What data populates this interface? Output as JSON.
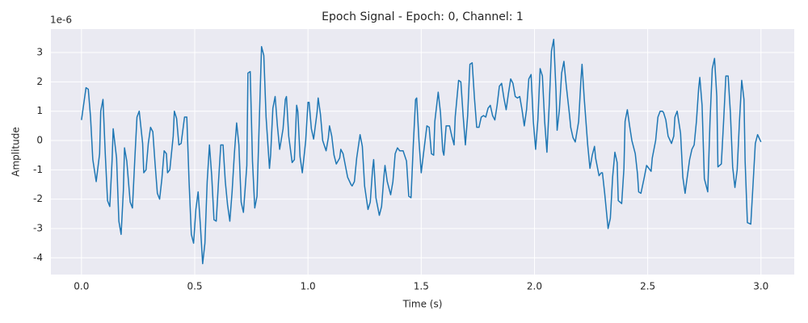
{
  "chart_data": {
    "type": "line",
    "title": "Epoch Signal - Epoch: 0, Channel: 1",
    "x_label": "Time (s)",
    "y_label": "Amplitude",
    "y_offset_label": "1e-6",
    "color": "#1f77b4",
    "grid": true,
    "xlim": [
      -0.135,
      3.147
    ],
    "ylim": [
      -4.57,
      3.8
    ],
    "xticks": [
      {
        "value": 0,
        "label": "0.0"
      },
      0.5,
      {
        "value": 1,
        "label": "1.0"
      },
      1.5,
      {
        "value": 2,
        "label": "2.0"
      },
      2.5,
      {
        "value": 3,
        "label": "3.0"
      }
    ],
    "yticks": [
      -4,
      -3,
      -2,
      -1,
      0,
      1,
      2,
      3
    ],
    "x": [
      0,
      0.02,
      0.03,
      0.04,
      0.05,
      0.065,
      0.08,
      0.085,
      0.095,
      0.105,
      0.115,
      0.125,
      0.135,
      0.14,
      0.155,
      0.165,
      0.175,
      0.185,
      0.19,
      0.2,
      0.215,
      0.225,
      0.235,
      0.245,
      0.255,
      0.27,
      0.275,
      0.285,
      0.295,
      0.305,
      0.315,
      0.325,
      0.335,
      0.345,
      0.355,
      0.365,
      0.375,
      0.38,
      0.39,
      0.405,
      0.41,
      0.42,
      0.43,
      0.44,
      0.455,
      0.465,
      0.475,
      0.485,
      0.495,
      0.505,
      0.515,
      0.525,
      0.535,
      0.545,
      0.555,
      0.565,
      0.575,
      0.585,
      0.595,
      0.605,
      0.615,
      0.625,
      0.635,
      0.645,
      0.655,
      0.665,
      0.675,
      0.685,
      0.695,
      0.705,
      0.715,
      0.73,
      0.735,
      0.745,
      0.755,
      0.765,
      0.775,
      0.785,
      0.795,
      0.805,
      0.815,
      0.83,
      0.835,
      0.845,
      0.855,
      0.865,
      0.875,
      0.89,
      0.9,
      0.905,
      0.915,
      0.93,
      0.94,
      0.95,
      0.955,
      0.965,
      0.975,
      0.99,
      1.0,
      1.005,
      1.015,
      1.025,
      1.04,
      1.045,
      1.055,
      1.065,
      1.08,
      1.09,
      1.095,
      1.105,
      1.115,
      1.125,
      1.14,
      1.145,
      1.155,
      1.165,
      1.175,
      1.19,
      1.195,
      1.205,
      1.215,
      1.23,
      1.24,
      1.25,
      1.265,
      1.275,
      1.285,
      1.29,
      1.3,
      1.315,
      1.325,
      1.335,
      1.34,
      1.35,
      1.365,
      1.375,
      1.385,
      1.395,
      1.405,
      1.41,
      1.42,
      1.435,
      1.445,
      1.455,
      1.465,
      1.475,
      1.48,
      1.49,
      1.5,
      1.51,
      1.525,
      1.535,
      1.545,
      1.555,
      1.56,
      1.575,
      1.585,
      1.595,
      1.6,
      1.61,
      1.625,
      1.635,
      1.645,
      1.65,
      1.665,
      1.675,
      1.685,
      1.695,
      1.705,
      1.715,
      1.725,
      1.735,
      1.745,
      1.755,
      1.765,
      1.775,
      1.785,
      1.795,
      1.805,
      1.815,
      1.825,
      1.835,
      1.845,
      1.855,
      1.865,
      1.875,
      1.885,
      1.895,
      1.905,
      1.915,
      1.925,
      1.935,
      1.945,
      1.955,
      1.965,
      1.975,
      1.985,
      1.995,
      2.005,
      2.015,
      2.025,
      2.035,
      2.045,
      2.055,
      2.065,
      2.075,
      2.085,
      2.095,
      2.1,
      2.11,
      2.12,
      2.13,
      2.14,
      2.155,
      2.16,
      2.17,
      2.18,
      2.195,
      2.205,
      2.21,
      2.22,
      2.235,
      2.245,
      2.255,
      2.265,
      2.27,
      2.285,
      2.295,
      2.3,
      2.31,
      2.325,
      2.335,
      2.345,
      2.355,
      2.365,
      2.37,
      2.385,
      2.395,
      2.4,
      2.41,
      2.42,
      2.43,
      2.445,
      2.455,
      2.46,
      2.47,
      2.485,
      2.495,
      2.505,
      2.515,
      2.52,
      2.535,
      2.545,
      2.555,
      2.565,
      2.57,
      2.58,
      2.59,
      2.605,
      2.615,
      2.62,
      2.63,
      2.645,
      2.655,
      2.665,
      2.67,
      2.685,
      2.695,
      2.705,
      2.715,
      2.725,
      2.73,
      2.74,
      2.75,
      2.765,
      2.775,
      2.785,
      2.795,
      2.805,
      2.81,
      2.825,
      2.835,
      2.845,
      2.855,
      2.865,
      2.875,
      2.885,
      2.895,
      2.905,
      2.915,
      2.925,
      2.93,
      2.94,
      2.955,
      2.965,
      2.975,
      2.985,
      3.0
    ],
    "values": [
      0.7,
      1.8,
      1.75,
      0.8,
      -0.65,
      -1.4,
      -0.45,
      1.0,
      1.4,
      -0.45,
      -2.05,
      -2.25,
      -0.7,
      0.4,
      -0.6,
      -2.75,
      -3.2,
      -1.7,
      -0.25,
      -0.7,
      -2.1,
      -2.3,
      -0.7,
      0.8,
      1.0,
      -0.1,
      -1.1,
      -1.0,
      -0.1,
      0.45,
      0.3,
      -0.8,
      -1.8,
      -2.0,
      -1.3,
      -0.35,
      -0.45,
      -1.1,
      -1.0,
      0.15,
      1.0,
      0.75,
      -0.15,
      -0.1,
      0.8,
      0.8,
      -1.4,
      -3.2,
      -3.5,
      -2.35,
      -1.75,
      -2.9,
      -4.2,
      -3.5,
      -1.4,
      -0.15,
      -1.2,
      -2.7,
      -2.75,
      -1.4,
      -0.15,
      -0.15,
      -1.4,
      -2.2,
      -2.75,
      -1.75,
      -0.45,
      0.6,
      -0.15,
      -2.1,
      -2.45,
      -0.85,
      2.3,
      2.35,
      -0.7,
      -2.3,
      -1.9,
      0.65,
      3.2,
      2.9,
      0.8,
      -0.95,
      -0.5,
      1.1,
      1.5,
      0.5,
      -0.3,
      0.4,
      1.4,
      1.5,
      0.15,
      -0.75,
      -0.65,
      1.2,
      1.0,
      -0.55,
      -1.1,
      0.0,
      1.3,
      1.3,
      0.4,
      0.05,
      0.95,
      1.45,
      0.9,
      0.0,
      -0.35,
      0.1,
      0.5,
      0.15,
      -0.5,
      -0.8,
      -0.6,
      -0.3,
      -0.45,
      -0.85,
      -1.25,
      -1.5,
      -1.55,
      -1.4,
      -0.6,
      0.2,
      -0.2,
      -1.55,
      -2.35,
      -2.1,
      -1.0,
      -0.65,
      -1.95,
      -2.55,
      -2.25,
      -1.25,
      -0.85,
      -1.4,
      -1.85,
      -1.4,
      -0.45,
      -0.25,
      -0.35,
      -0.35,
      -0.35,
      -0.7,
      -1.9,
      -1.95,
      -0.15,
      1.4,
      1.45,
      0.0,
      -1.1,
      -0.45,
      0.5,
      0.45,
      -0.45,
      -0.5,
      0.65,
      1.65,
      0.95,
      -0.35,
      -0.5,
      0.5,
      0.5,
      0.15,
      -0.15,
      0.8,
      2.05,
      2.0,
      0.85,
      -0.15,
      0.85,
      2.6,
      2.65,
      1.45,
      0.45,
      0.45,
      0.8,
      0.85,
      0.8,
      1.1,
      1.2,
      0.85,
      0.7,
      1.2,
      1.85,
      1.95,
      1.45,
      1.05,
      1.6,
      2.1,
      1.95,
      1.5,
      1.45,
      1.5,
      1.05,
      0.5,
      1.05,
      2.1,
      2.25,
      0.65,
      -0.3,
      0.7,
      2.45,
      2.2,
      0.65,
      -0.4,
      1.2,
      3.05,
      3.45,
      1.7,
      0.35,
      1.05,
      2.3,
      2.7,
      1.9,
      0.85,
      0.45,
      0.1,
      -0.05,
      0.65,
      2.05,
      2.6,
      1.4,
      -0.15,
      -0.95,
      -0.5,
      -0.2,
      -0.6,
      -1.2,
      -1.1,
      -1.1,
      -1.8,
      -3.0,
      -2.65,
      -1.25,
      -0.4,
      -0.75,
      -2.05,
      -2.15,
      -0.95,
      0.65,
      1.05,
      0.5,
      0.0,
      -0.45,
      -1.15,
      -1.75,
      -1.8,
      -1.25,
      -0.85,
      -0.95,
      -1.05,
      -0.6,
      0.0,
      0.8,
      1.0,
      1.0,
      0.95,
      0.7,
      0.15,
      -0.1,
      0.15,
      0.8,
      1.0,
      0.25,
      -1.25,
      -1.8,
      -1.5,
      -0.65,
      -0.3,
      -0.15,
      0.65,
      1.8,
      2.15,
      1.2,
      -1.3,
      -1.75,
      0.65,
      2.45,
      2.8,
      1.5,
      -0.9,
      -0.8,
      0.65,
      2.2,
      2.2,
      0.95,
      -0.9,
      -1.6,
      -1.0,
      0.65,
      2.05,
      1.4,
      -0.7,
      -2.8,
      -2.85,
      -1.5,
      -0.1,
      0.2,
      -0.05
    ]
  }
}
